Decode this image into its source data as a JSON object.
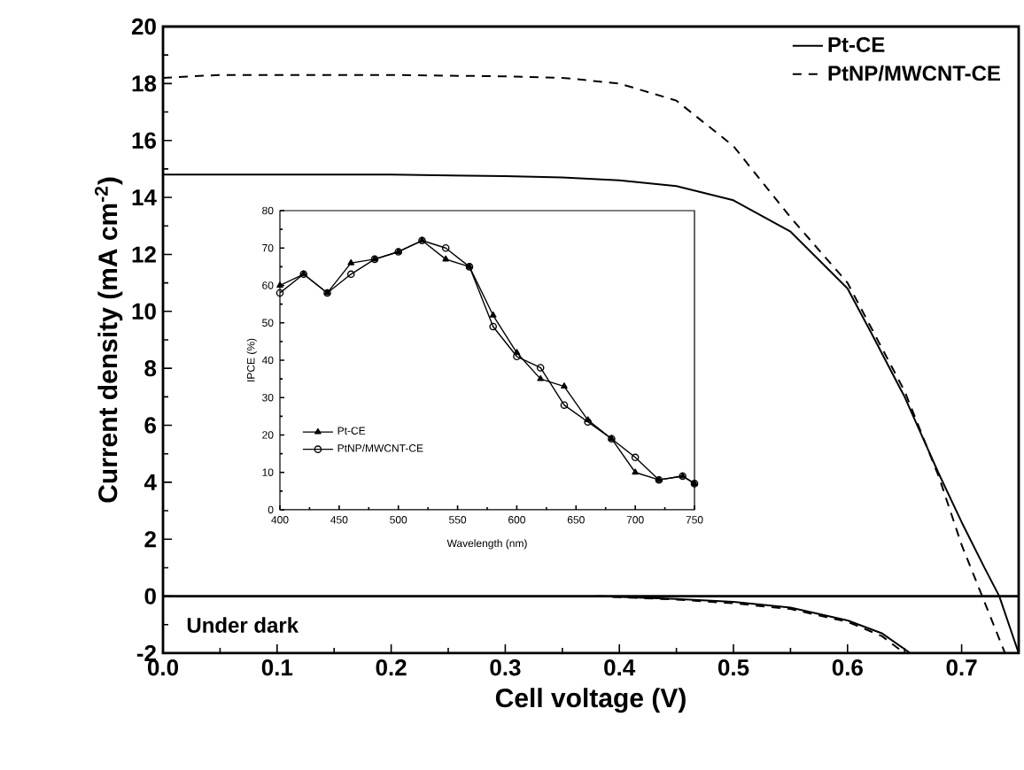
{
  "chart_data": [
    {
      "type": "line",
      "xlabel": "Cell voltage (V)",
      "ylabel": "Current density (mA cm$^{-2}$)",
      "xlim": [
        0,
        0.75
      ],
      "ylim": [
        -2,
        20
      ],
      "xticks": [
        {
          "value": 0,
          "label": "0.0"
        },
        0.1,
        0.2,
        0.3,
        0.4,
        0.5,
        0.6,
        0.7
      ],
      "yticks": [
        -2,
        0,
        2,
        4,
        6,
        8,
        10,
        12,
        14,
        16,
        18,
        20
      ],
      "legend": "top right",
      "marker": "none",
      "ref_lines": [
        {
          "axis": "y",
          "value": 0
        }
      ],
      "annotations": [
        "Under dark"
      ],
      "series": [
        {
          "name": "Pt-CE",
          "color": "#000000",
          "line_style": "solid",
          "x": [
            0,
            0.1,
            0.2,
            0.3,
            0.35,
            0.4,
            0.45,
            0.5,
            0.55,
            0.6,
            0.62,
            0.65,
            0.68,
            0.7,
            0.72,
            0.733,
            0.75
          ],
          "values": [
            14.8,
            14.8,
            14.8,
            14.75,
            14.7,
            14.6,
            14.4,
            13.9,
            12.8,
            10.8,
            9.3,
            7.0,
            4.3,
            2.6,
            1.0,
            0,
            -2
          ]
        },
        {
          "name": "PtNP/MWCNT-CE",
          "color": "#000000",
          "line_style": "dashed",
          "x": [
            0,
            0.05,
            0.1,
            0.2,
            0.3,
            0.35,
            0.4,
            0.45,
            0.5,
            0.55,
            0.6,
            0.65,
            0.68,
            0.7,
            0.72,
            0.738
          ],
          "values": [
            18.2,
            18.3,
            18.3,
            18.3,
            18.25,
            18.2,
            18.0,
            17.4,
            15.8,
            13.3,
            11.0,
            7.2,
            4.2,
            1.8,
            -0.2,
            -2
          ]
        },
        {
          "color": "#000000",
          "line_style": "solid",
          "x": [
            0.38,
            0.45,
            0.5,
            0.55,
            0.6,
            0.63,
            0.655
          ],
          "values": [
            0,
            -0.1,
            -0.2,
            -0.4,
            -0.85,
            -1.3,
            -2
          ]
        },
        {
          "color": "#000000",
          "line_style": "dashed",
          "x": [
            0.38,
            0.45,
            0.5,
            0.55,
            0.6,
            0.63,
            0.65
          ],
          "values": [
            0,
            -0.12,
            -0.25,
            -0.45,
            -0.9,
            -1.4,
            -2
          ]
        }
      ]
    },
    {
      "type": "line",
      "xlabel": "Wavelength (nm)",
      "ylabel": "IPCE (%)",
      "xlim": [
        400,
        750
      ],
      "ylim": [
        0,
        80
      ],
      "xticks": [
        400,
        450,
        500,
        550,
        600,
        650,
        700,
        750
      ],
      "yticks": [
        0,
        10,
        20,
        30,
        40,
        50,
        60,
        70,
        80
      ],
      "legend": "bottom left",
      "series": [
        {
          "name": "Pt-CE",
          "color": "#000000",
          "marker": "triangle",
          "line_style": "solid",
          "x": [
            400,
            420,
            440,
            460,
            480,
            500,
            520,
            540,
            560,
            580,
            600,
            620,
            640,
            660,
            680,
            700,
            720,
            740,
            750
          ],
          "values": [
            60,
            63,
            58,
            66,
            67,
            69,
            72,
            67,
            65,
            52,
            42,
            35,
            33,
            24,
            19,
            10,
            8,
            9,
            7
          ]
        },
        {
          "name": "PtNP/MWCNT-CE",
          "color": "#000000",
          "marker": "circle",
          "line_style": "solid",
          "x": [
            400,
            420,
            440,
            460,
            480,
            500,
            520,
            540,
            560,
            580,
            600,
            620,
            640,
            660,
            680,
            700,
            720,
            740,
            750
          ],
          "values": [
            58,
            63,
            58,
            63,
            67,
            69,
            72,
            70,
            65,
            49,
            41,
            38,
            28,
            23.5,
            19,
            14,
            8,
            9,
            7
          ]
        }
      ]
    }
  ]
}
